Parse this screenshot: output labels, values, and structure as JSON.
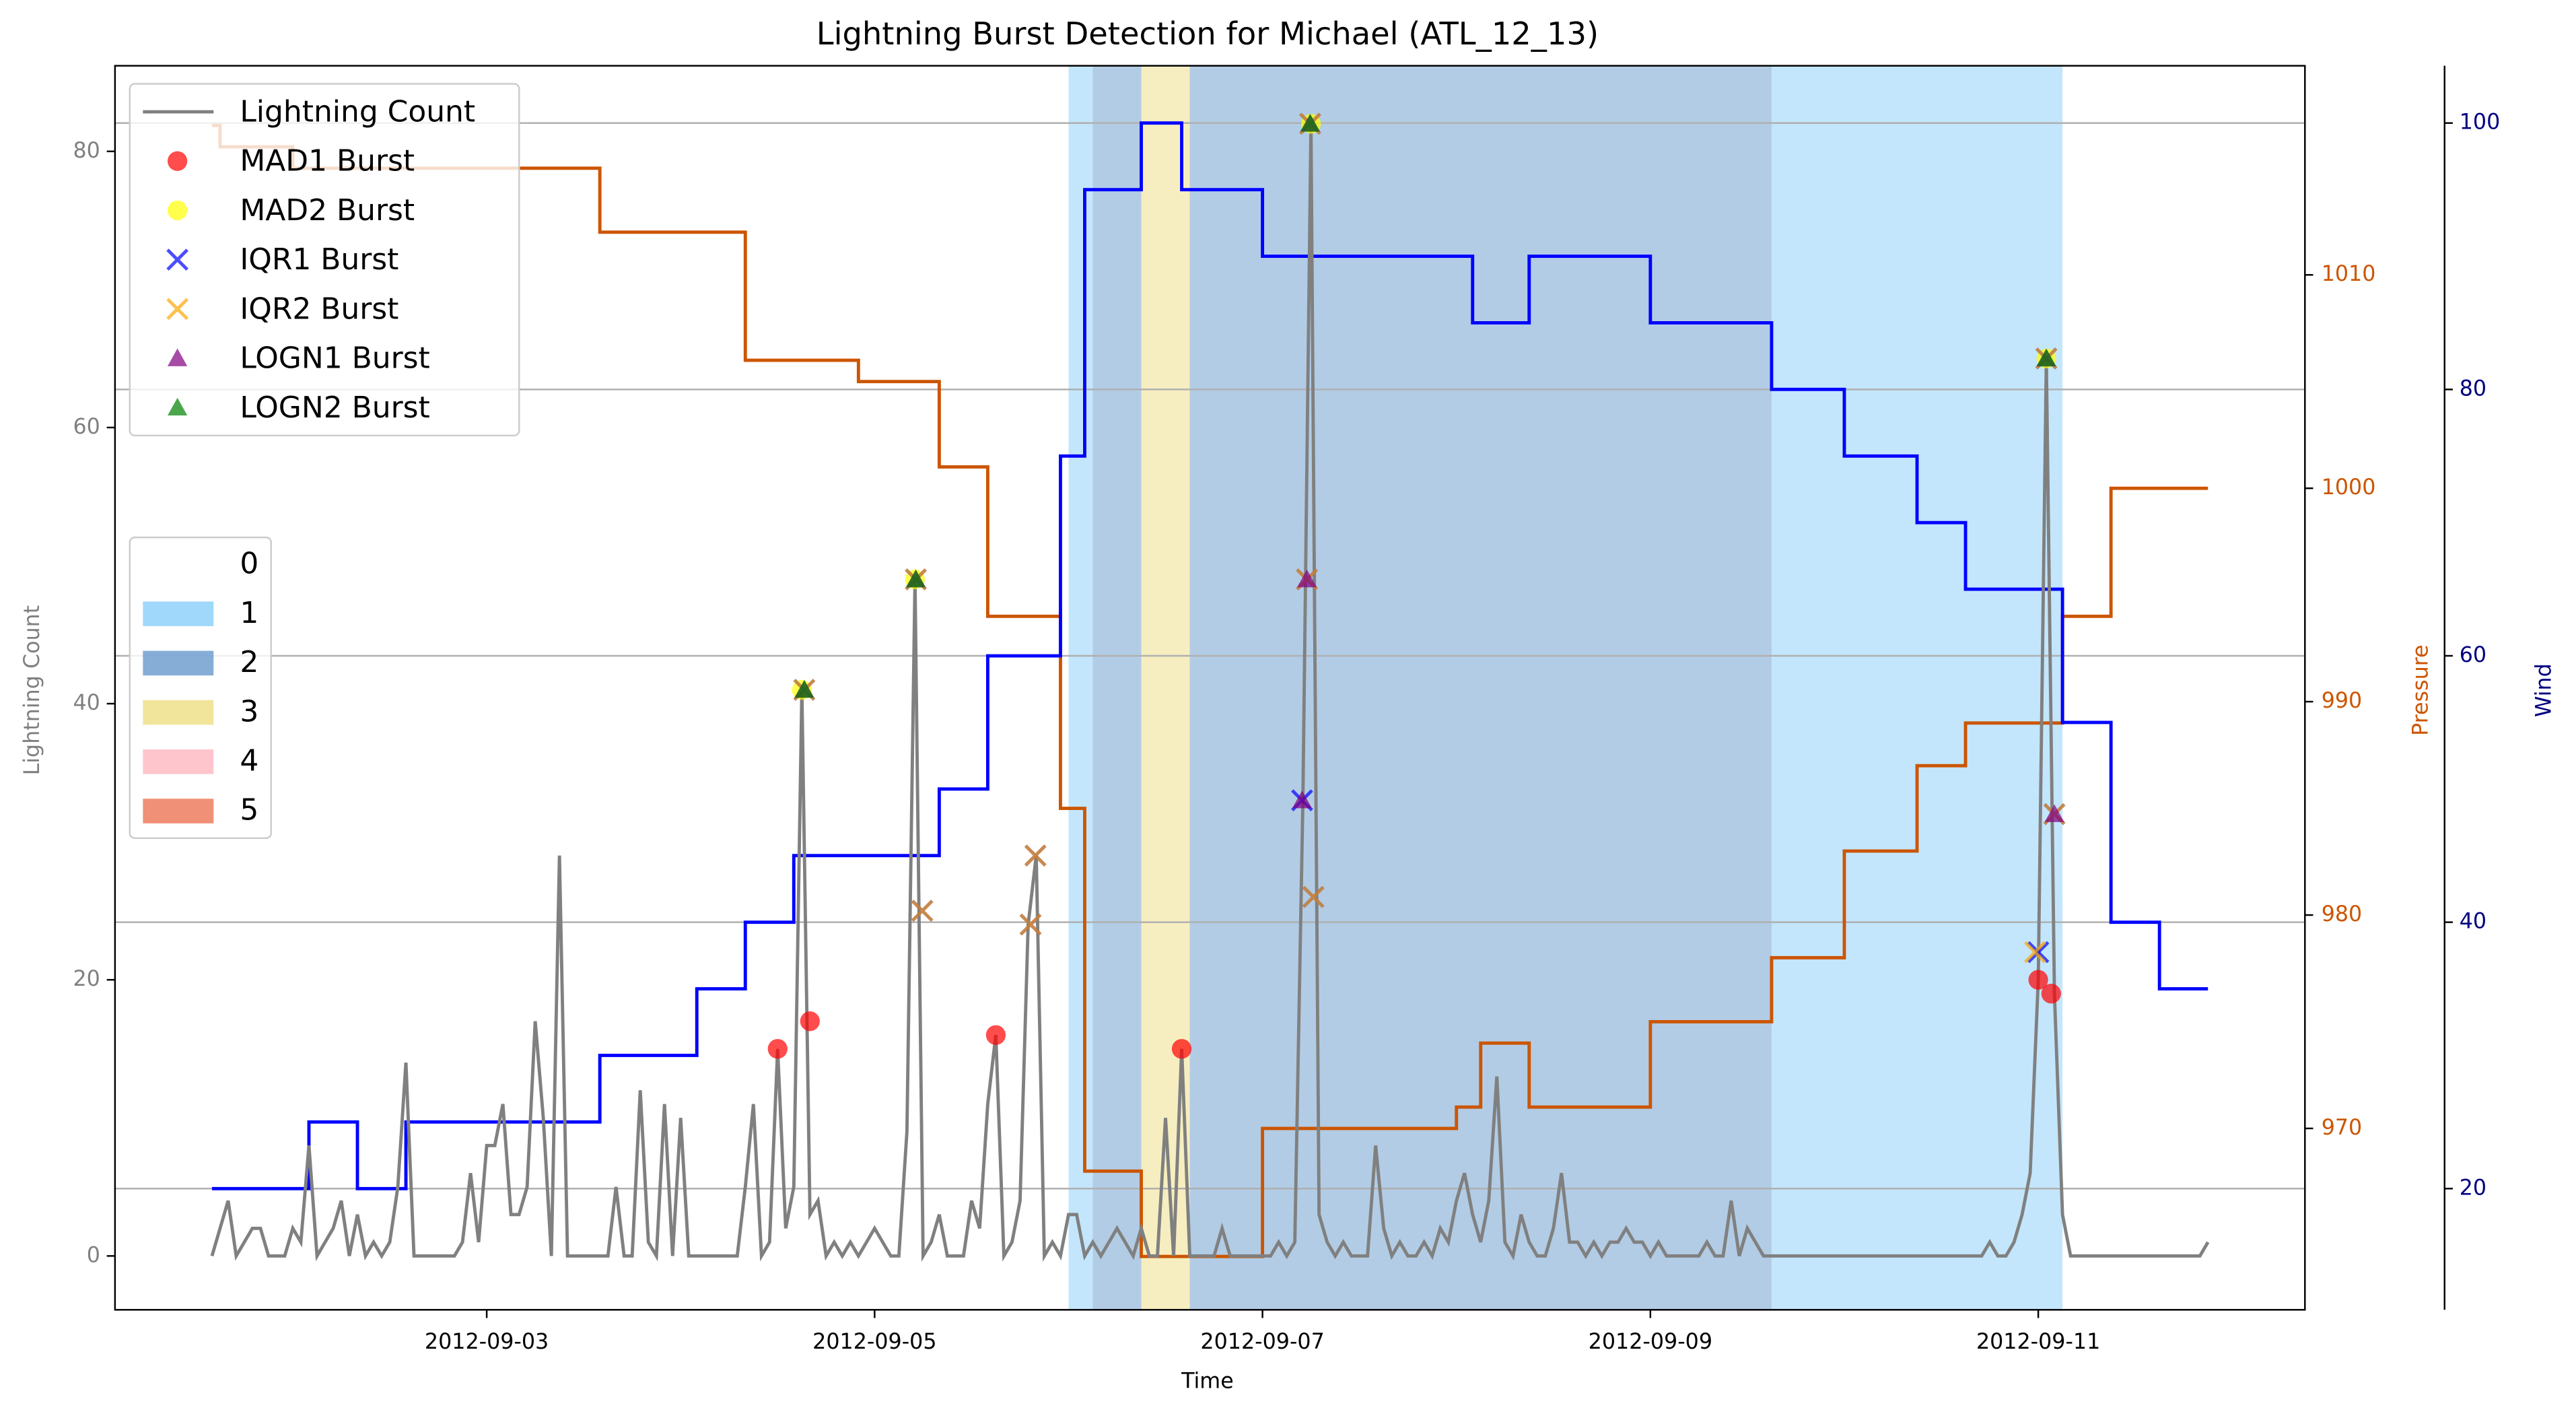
{
  "chart_data": {
    "type": "line",
    "title": "Lightning Burst Detection for Michael (ATL_12_13)",
    "xlabel": "Time",
    "ylabel": "Lightning Count",
    "y2label": "Pressure",
    "y3label": "Wind",
    "xlim": [
      "2012-09-01 02:00",
      "2012-09-12 09:00"
    ],
    "xticks": [
      "2012-09-03",
      "2012-09-05",
      "2012-09-07",
      "2012-09-09",
      "2012-09-11"
    ],
    "ylim": [
      -3.9,
      86.2
    ],
    "yticks": [
      0,
      20,
      40,
      60,
      80
    ],
    "ycolor": "#808080",
    "y2lim": [
      961.5,
      1019.8
    ],
    "y2ticks": [
      970,
      980,
      990,
      1000,
      1010
    ],
    "y2color": "#cc5500",
    "y3lim": [
      10.9,
      104.3
    ],
    "y3ticks": [
      20,
      40,
      60,
      80,
      100
    ],
    "y3color": "#000080",
    "y3grid": true,
    "series": [
      {
        "name": "Lightning Count",
        "type": "line",
        "color": "#808080",
        "x": [
          "2012-09-01 14:00",
          "2012-09-01 15:00",
          "2012-09-01 16:00",
          "2012-09-01 17:00",
          "2012-09-01 18:00",
          "2012-09-01 19:00",
          "2012-09-01 20:00",
          "2012-09-01 21:00",
          "2012-09-01 22:00",
          "2012-09-01 23:00",
          "2012-09-02 00:00",
          "2012-09-02 01:00",
          "2012-09-02 02:00",
          "2012-09-02 03:00",
          "2012-09-02 04:00",
          "2012-09-02 05:00",
          "2012-09-02 06:00",
          "2012-09-02 07:00",
          "2012-09-02 08:00",
          "2012-09-02 09:00",
          "2012-09-02 10:00",
          "2012-09-02 11:00",
          "2012-09-02 12:00",
          "2012-09-02 13:00",
          "2012-09-02 14:00",
          "2012-09-02 15:00",
          "2012-09-02 16:00",
          "2012-09-02 17:00",
          "2012-09-02 18:00",
          "2012-09-02 19:00",
          "2012-09-02 20:00",
          "2012-09-02 21:00",
          "2012-09-02 22:00",
          "2012-09-02 23:00",
          "2012-09-03 00:00",
          "2012-09-03 01:00",
          "2012-09-03 02:00",
          "2012-09-03 03:00",
          "2012-09-03 04:00",
          "2012-09-03 05:00",
          "2012-09-03 06:00",
          "2012-09-03 07:00",
          "2012-09-03 08:00",
          "2012-09-03 09:00",
          "2012-09-03 10:00",
          "2012-09-03 11:00",
          "2012-09-03 12:00",
          "2012-09-03 13:00",
          "2012-09-03 14:00",
          "2012-09-03 15:00",
          "2012-09-03 16:00",
          "2012-09-03 17:00",
          "2012-09-03 18:00",
          "2012-09-03 19:00",
          "2012-09-03 20:00",
          "2012-09-03 21:00",
          "2012-09-03 22:00",
          "2012-09-03 23:00",
          "2012-09-04 00:00",
          "2012-09-04 01:00",
          "2012-09-04 02:00",
          "2012-09-04 03:00",
          "2012-09-04 04:00",
          "2012-09-04 05:00",
          "2012-09-04 06:00",
          "2012-09-04 07:00",
          "2012-09-04 08:00",
          "2012-09-04 09:00",
          "2012-09-04 10:00",
          "2012-09-04 11:00",
          "2012-09-04 12:00",
          "2012-09-04 13:00",
          "2012-09-04 14:00",
          "2012-09-04 15:00",
          "2012-09-04 16:00",
          "2012-09-04 17:00",
          "2012-09-04 18:00",
          "2012-09-04 19:00",
          "2012-09-04 20:00",
          "2012-09-04 21:00",
          "2012-09-04 22:00",
          "2012-09-04 23:00",
          "2012-09-05 00:00",
          "2012-09-05 01:00",
          "2012-09-05 02:00",
          "2012-09-05 03:00",
          "2012-09-05 04:00",
          "2012-09-05 05:00",
          "2012-09-05 06:00",
          "2012-09-05 07:00",
          "2012-09-05 08:00",
          "2012-09-05 09:00",
          "2012-09-05 10:00",
          "2012-09-05 11:00",
          "2012-09-05 12:00",
          "2012-09-05 13:00",
          "2012-09-05 14:00",
          "2012-09-05 15:00",
          "2012-09-05 16:00",
          "2012-09-05 17:00",
          "2012-09-05 18:00",
          "2012-09-05 19:00",
          "2012-09-05 20:00",
          "2012-09-05 21:00",
          "2012-09-05 22:00",
          "2012-09-05 23:00",
          "2012-09-06 00:00",
          "2012-09-06 01:00",
          "2012-09-06 02:00",
          "2012-09-06 03:00",
          "2012-09-06 04:00",
          "2012-09-06 05:00",
          "2012-09-06 06:00",
          "2012-09-06 07:00",
          "2012-09-06 08:00",
          "2012-09-06 09:00",
          "2012-09-06 10:00",
          "2012-09-06 11:00",
          "2012-09-06 12:00",
          "2012-09-06 13:00",
          "2012-09-06 14:00",
          "2012-09-06 15:00",
          "2012-09-06 16:00",
          "2012-09-06 17:00",
          "2012-09-06 18:00",
          "2012-09-06 19:00",
          "2012-09-06 20:00",
          "2012-09-06 21:00",
          "2012-09-06 22:00",
          "2012-09-06 23:00",
          "2012-09-07 00:00",
          "2012-09-07 01:00",
          "2012-09-07 02:00",
          "2012-09-07 03:00",
          "2012-09-07 04:00",
          "2012-09-07 05:00",
          "2012-09-07 06:00",
          "2012-09-07 07:00",
          "2012-09-07 08:00",
          "2012-09-07 09:00",
          "2012-09-07 10:00",
          "2012-09-07 11:00",
          "2012-09-07 12:00",
          "2012-09-07 13:00",
          "2012-09-07 14:00",
          "2012-09-07 15:00",
          "2012-09-07 16:00",
          "2012-09-07 17:00",
          "2012-09-07 18:00",
          "2012-09-07 19:00",
          "2012-09-07 20:00",
          "2012-09-07 21:00",
          "2012-09-07 22:00",
          "2012-09-07 23:00",
          "2012-09-08 00:00",
          "2012-09-08 01:00",
          "2012-09-08 02:00",
          "2012-09-08 03:00",
          "2012-09-08 04:00",
          "2012-09-08 05:00",
          "2012-09-08 06:00",
          "2012-09-08 07:00",
          "2012-09-08 08:00",
          "2012-09-08 09:00",
          "2012-09-08 10:00",
          "2012-09-08 11:00",
          "2012-09-08 12:00",
          "2012-09-08 13:00",
          "2012-09-08 14:00",
          "2012-09-08 15:00",
          "2012-09-08 16:00",
          "2012-09-08 17:00",
          "2012-09-08 18:00",
          "2012-09-08 19:00",
          "2012-09-08 20:00",
          "2012-09-08 21:00",
          "2012-09-08 22:00",
          "2012-09-08 23:00",
          "2012-09-09 00:00",
          "2012-09-09 01:00",
          "2012-09-09 02:00",
          "2012-09-09 03:00",
          "2012-09-09 04:00",
          "2012-09-09 05:00",
          "2012-09-09 06:00",
          "2012-09-09 07:00",
          "2012-09-09 08:00",
          "2012-09-09 09:00",
          "2012-09-09 10:00",
          "2012-09-09 11:00",
          "2012-09-09 12:00",
          "2012-09-09 13:00",
          "2012-09-09 14:00",
          "2012-09-09 15:00",
          "2012-09-09 16:00",
          "2012-09-09 17:00",
          "2012-09-09 18:00",
          "2012-09-09 19:00",
          "2012-09-09 20:00",
          "2012-09-09 21:00",
          "2012-09-09 22:00",
          "2012-09-09 23:00",
          "2012-09-10 00:00",
          "2012-09-10 01:00",
          "2012-09-10 02:00",
          "2012-09-10 03:00",
          "2012-09-10 04:00",
          "2012-09-10 05:00",
          "2012-09-10 06:00",
          "2012-09-10 07:00",
          "2012-09-10 08:00",
          "2012-09-10 09:00",
          "2012-09-10 10:00",
          "2012-09-10 11:00",
          "2012-09-10 12:00",
          "2012-09-10 13:00",
          "2012-09-10 14:00",
          "2012-09-10 15:00",
          "2012-09-10 16:00",
          "2012-09-10 17:00",
          "2012-09-10 18:00",
          "2012-09-10 19:00",
          "2012-09-10 20:00",
          "2012-09-10 21:00",
          "2012-09-10 22:00",
          "2012-09-10 23:00",
          "2012-09-11 00:00",
          "2012-09-11 01:00",
          "2012-09-11 02:00",
          "2012-09-11 03:00",
          "2012-09-11 04:00",
          "2012-09-11 05:00",
          "2012-09-11 06:00",
          "2012-09-11 07:00",
          "2012-09-11 08:00",
          "2012-09-11 09:00",
          "2012-09-11 10:00",
          "2012-09-11 11:00",
          "2012-09-11 12:00",
          "2012-09-11 13:00",
          "2012-09-11 14:00",
          "2012-09-11 15:00",
          "2012-09-11 16:00",
          "2012-09-11 17:00",
          "2012-09-11 18:00",
          "2012-09-11 19:00",
          "2012-09-11 20:00",
          "2012-09-11 21:00"
        ],
        "values": [
          0,
          2,
          4,
          0,
          1,
          2,
          2,
          0,
          0,
          0,
          2,
          1,
          8,
          0,
          1,
          2,
          4,
          0,
          3,
          0,
          1,
          0,
          1,
          5,
          14,
          0,
          0,
          0,
          0,
          0,
          0,
          1,
          6,
          1,
          8,
          8,
          11,
          3,
          3,
          5,
          17,
          10,
          0,
          29,
          0,
          0,
          0,
          0,
          0,
          0,
          5,
          0,
          0,
          12,
          1,
          0,
          11,
          0,
          10,
          0,
          0,
          0,
          0,
          0,
          0,
          0,
          5,
          11,
          0,
          1,
          15,
          2,
          5,
          41,
          3,
          4,
          0,
          1,
          0,
          1,
          0,
          1,
          2,
          1,
          0,
          0,
          9,
          49,
          0,
          1,
          3,
          0,
          0,
          0,
          4,
          2,
          11,
          16,
          0,
          1,
          4,
          24,
          29,
          0,
          1,
          0,
          3,
          3,
          0,
          1,
          0,
          1,
          2,
          1,
          0,
          2,
          0,
          0,
          10,
          0,
          15,
          0,
          0,
          0,
          0,
          2,
          0,
          0,
          0,
          0,
          0,
          0,
          1,
          0,
          1,
          33,
          82,
          3,
          1,
          0,
          1,
          0,
          0,
          0,
          8,
          2,
          0,
          1,
          0,
          0,
          1,
          0,
          2,
          1,
          4,
          6,
          3,
          1,
          4,
          13,
          1,
          0,
          3,
          1,
          0,
          0,
          2,
          6,
          1,
          1,
          0,
          1,
          0,
          1,
          1,
          2,
          1,
          1,
          0,
          1,
          0,
          0,
          0,
          0,
          0,
          1,
          0,
          0,
          4,
          0,
          2,
          1,
          0,
          0,
          0,
          0,
          0,
          0,
          0,
          0,
          0,
          0,
          0,
          0,
          0,
          0,
          0,
          0,
          0,
          0,
          0,
          0,
          0,
          0,
          0,
          0,
          0,
          0,
          0,
          0,
          1,
          0,
          0,
          1,
          3,
          6,
          20,
          65,
          19,
          3,
          0,
          0,
          0,
          0,
          0,
          0,
          0,
          0,
          0,
          0,
          0,
          0,
          0,
          0,
          0,
          0,
          0,
          1
        ]
      },
      {
        "name": "MAD1 Burst",
        "type": "scatter",
        "marker": "circle",
        "color": "#ff0000",
        "x": [
          "2012-09-04 12:00",
          "2012-09-04 16:00",
          "2012-09-05 15:00",
          "2012-09-06 14:00",
          "2012-09-11 00:00",
          "2012-09-11 01:36"
        ],
        "values": [
          15,
          17,
          16,
          15,
          20,
          19
        ]
      },
      {
        "name": "MAD2 Burst",
        "type": "scatter",
        "marker": "circle",
        "color": "#ffff00",
        "x": [
          "2012-09-04 15:00",
          "2012-09-05 05:00",
          "2012-09-07 06:00",
          "2012-09-11 01:00"
        ],
        "values": [
          41,
          49,
          82,
          65
        ]
      },
      {
        "name": "IQR1 Burst",
        "type": "scatter",
        "marker": "x",
        "color": "#0000ff",
        "x": [
          "2012-09-04 15:18",
          "2012-09-05 05:06",
          "2012-09-05 05:54",
          "2012-09-05 19:18",
          "2012-09-05 19:54",
          "2012-09-07 04:54",
          "2012-09-07 05:30",
          "2012-09-07 05:54",
          "2012-09-07 06:18",
          "2012-09-11 00:00",
          "2012-09-11 01:00",
          "2012-09-11 02:00"
        ],
        "values": [
          41,
          49,
          25,
          24,
          29,
          33,
          49,
          82,
          26,
          22,
          65,
          32
        ]
      },
      {
        "name": "IQR2 Burst",
        "type": "scatter",
        "marker": "x",
        "color": "#ffa500",
        "x": [
          "2012-09-04 15:18",
          "2012-09-05 05:06",
          "2012-09-05 05:54",
          "2012-09-05 19:18",
          "2012-09-05 19:54",
          "2012-09-07 05:30",
          "2012-09-07 05:54",
          "2012-09-07 06:18",
          "2012-09-10 23:36",
          "2012-09-11 01:00",
          "2012-09-11 02:00"
        ],
        "values": [
          41,
          49,
          25,
          24,
          29,
          49,
          82,
          26,
          22,
          65,
          32
        ]
      },
      {
        "name": "LOGN1 Burst",
        "type": "scatter",
        "marker": "triangle",
        "color": "#800080",
        "x": [
          "2012-09-04 15:18",
          "2012-09-05 05:06",
          "2012-09-07 04:54",
          "2012-09-07 05:30",
          "2012-09-07 05:54",
          "2012-09-11 01:00",
          "2012-09-11 02:00"
        ],
        "values": [
          41,
          49,
          33,
          49,
          82,
          65,
          32
        ]
      },
      {
        "name": "LOGN2 Burst",
        "type": "scatter",
        "marker": "triangle",
        "color": "#008000",
        "x": [
          "2012-09-04 15:18",
          "2012-09-05 05:06",
          "2012-09-07 05:54",
          "2012-09-11 01:00"
        ],
        "values": [
          41,
          49,
          82,
          65
        ]
      }
    ],
    "pressure": {
      "color": "#cc5500",
      "drawstyle": "steps-post",
      "x": [
        "2012-09-01 14:00",
        "2012-09-01 15:00",
        "2012-09-02 00:00",
        "2012-09-03 14:00",
        "2012-09-04 08:00",
        "2012-09-04 22:00",
        "2012-09-05 08:00",
        "2012-09-05 14:00",
        "2012-09-05 23:00",
        "2012-09-06 02:00",
        "2012-09-06 09:00",
        "2012-09-07 00:00",
        "2012-09-08 00:00",
        "2012-09-08 03:00",
        "2012-09-08 09:00",
        "2012-09-09 00:00",
        "2012-09-09 15:00",
        "2012-09-10 00:00",
        "2012-09-10 09:00",
        "2012-09-10 15:00",
        "2012-09-11 03:00",
        "2012-09-11 09:00",
        "2012-09-11 21:00"
      ],
      "values": [
        1017,
        1016,
        1015,
        1012,
        1006,
        1005,
        1001,
        994,
        985,
        968,
        964,
        970,
        971,
        974,
        971,
        975,
        978,
        983,
        987,
        989,
        994,
        1000,
        1000
      ]
    },
    "wind": {
      "color": "#0000ff",
      "drawstyle": "steps-post",
      "x": [
        "2012-09-01 14:00",
        "2012-09-02 02:00",
        "2012-09-02 08:00",
        "2012-09-02 14:00",
        "2012-09-03 14:00",
        "2012-09-04 02:00",
        "2012-09-04 08:00",
        "2012-09-04 14:00",
        "2012-09-05 08:00",
        "2012-09-05 14:00",
        "2012-09-05 23:00",
        "2012-09-06 02:00",
        "2012-09-06 09:00",
        "2012-09-06 14:00",
        "2012-09-07 00:00",
        "2012-09-08 02:00",
        "2012-09-08 09:00",
        "2012-09-09 00:00",
        "2012-09-09 15:00",
        "2012-09-10 00:00",
        "2012-09-10 09:00",
        "2012-09-10 15:00",
        "2012-09-11 03:00",
        "2012-09-11 09:00",
        "2012-09-11 15:00",
        "2012-09-11 21:00"
      ],
      "values": [
        20,
        25,
        20,
        25,
        30,
        35,
        40,
        45,
        50,
        60,
        75,
        95,
        100,
        95,
        90,
        85,
        90,
        85,
        80,
        75,
        70,
        65,
        55,
        40,
        35,
        35
      ]
    },
    "categories": [
      "0",
      "1",
      "2",
      "3",
      "4",
      "5"
    ],
    "category_colors": [
      "#ffffff",
      "#87cefa",
      "#6699cc",
      "#eedd82",
      "#ffb6c1",
      "#ec7454"
    ],
    "category_spans": [
      {
        "start": "2012-09-06 00:00",
        "end": "2012-09-06 03:00",
        "category": 1
      },
      {
        "start": "2012-09-06 03:00",
        "end": "2012-09-06 09:00",
        "category": 2
      },
      {
        "start": "2012-09-06 09:00",
        "end": "2012-09-06 15:00",
        "category": 3
      },
      {
        "start": "2012-09-06 15:00",
        "end": "2012-09-09 15:00",
        "category": 2
      },
      {
        "start": "2012-09-09 15:00",
        "end": "2012-09-11 03:00",
        "category": 1
      }
    ]
  }
}
